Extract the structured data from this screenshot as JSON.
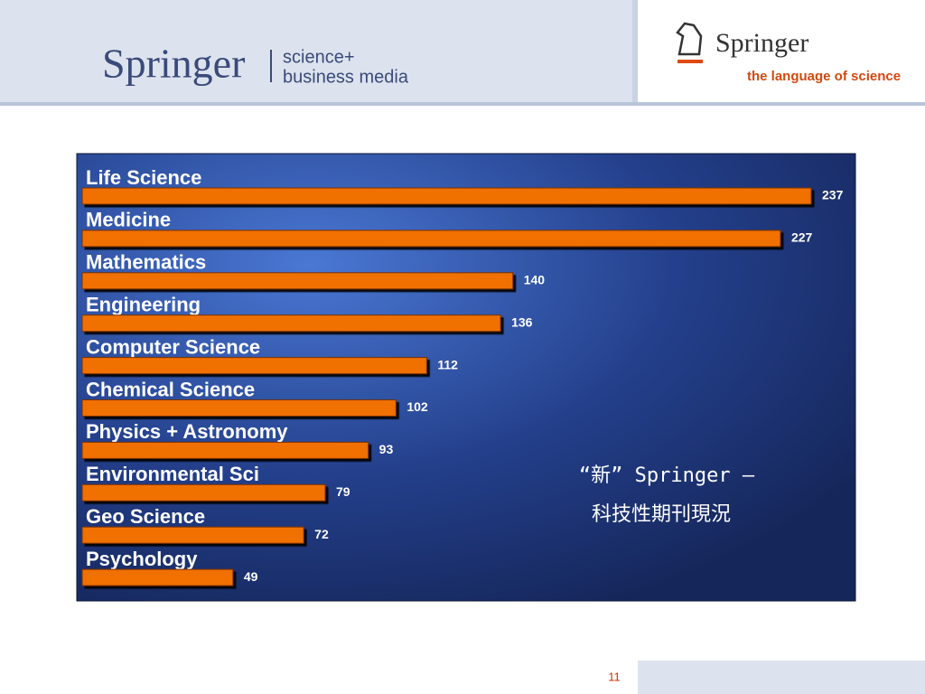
{
  "header": {
    "brand": "Springer",
    "tagline_1": "science+",
    "tagline_2": "business media",
    "logo_name": "Springer",
    "logo_slogan": "the language of science"
  },
  "chart_data": {
    "type": "bar",
    "orientation": "horizontal",
    "categories": [
      "Life Science",
      "Medicine",
      "Mathematics",
      "Engineering",
      "Computer Science",
      "Chemical Science",
      "Physics + Astronomy",
      "Environmental Sci",
      "Geo Science",
      "Psychology"
    ],
    "values": [
      237,
      227,
      140,
      136,
      112,
      102,
      93,
      79,
      72,
      49
    ],
    "color": "#f07000",
    "annotation": [
      "“新” Springer –",
      "科技性期刊現況"
    ]
  },
  "footer": {
    "page_number": "11"
  }
}
